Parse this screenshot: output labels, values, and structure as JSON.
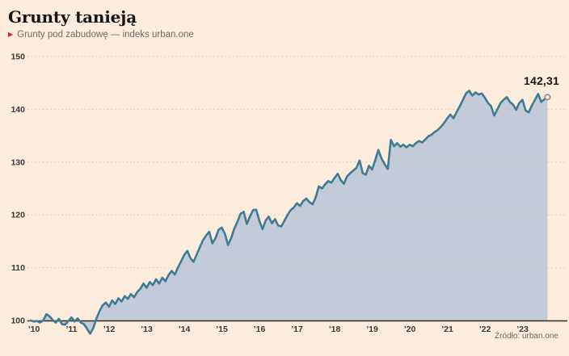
{
  "header": {
    "title": "Grunty tanieją",
    "legend_label": "Grunty pod zabudowę — indeks urban.one"
  },
  "source_note": "Źródło: urban.one",
  "colors": {
    "background": "#fbecdc",
    "line": "#3e7b97",
    "area_fill": "#c4cbd8",
    "grid": "#cfc5b9",
    "axis": "#2f2d2a",
    "legend_marker": "#d6232a",
    "tick_text": "#3b3835",
    "marker_fill": "#f6ede2",
    "marker_stroke": "#8f8a84"
  },
  "chart_data": {
    "type": "area",
    "title": "Grunty tanieją",
    "series_name": "Grunty pod zabudowę — indeks urban.one",
    "x_start": "2010-01",
    "frequency": "monthly",
    "x_tick_labels": [
      "’10",
      "’11",
      "’12",
      "’13",
      "’14",
      "’15",
      "’16",
      "’17",
      "’18",
      "’19",
      "’20",
      "’21",
      "’22",
      "’23"
    ],
    "y_ticks": [
      100,
      110,
      120,
      130,
      140,
      150
    ],
    "ylim": [
      100,
      150
    ],
    "grid": "dotted-horizontal",
    "legend_position": "top-left",
    "final_value_label": "142,31",
    "final_value": 142.31,
    "values": [
      100.0,
      99.8,
      99.9,
      99.6,
      100.0,
      101.2,
      100.8,
      100.1,
      99.6,
      100.3,
      99.3,
      99.2,
      99.9,
      100.6,
      99.8,
      100.4,
      99.6,
      99.3,
      98.4,
      97.5,
      98.6,
      100.4,
      101.8,
      102.9,
      103.4,
      102.6,
      103.8,
      103.1,
      104.2,
      103.6,
      104.6,
      104.1,
      105.0,
      104.4,
      105.4,
      106.0,
      107.0,
      106.2,
      107.3,
      106.7,
      107.8,
      107.0,
      108.1,
      107.4,
      108.6,
      109.4,
      108.7,
      110.0,
      111.2,
      112.4,
      113.2,
      111.8,
      111.1,
      112.5,
      113.9,
      115.2,
      116.1,
      116.8,
      114.6,
      115.6,
      117.2,
      117.6,
      116.4,
      114.3,
      115.6,
      117.4,
      118.7,
      120.2,
      120.6,
      118.3,
      119.7,
      120.9,
      121.0,
      118.9,
      117.3,
      118.9,
      119.7,
      118.4,
      119.2,
      118.0,
      117.8,
      118.9,
      120.0,
      120.9,
      121.4,
      122.2,
      121.7,
      122.6,
      123.1,
      122.4,
      122.0,
      123.3,
      125.4,
      125.0,
      125.8,
      126.4,
      126.1,
      127.0,
      127.8,
      126.6,
      125.9,
      127.3,
      127.9,
      128.4,
      128.9,
      130.3,
      127.9,
      127.6,
      129.3,
      128.6,
      130.4,
      132.3,
      130.7,
      129.6,
      128.7,
      134.2,
      133.0,
      133.6,
      132.9,
      133.3,
      132.8,
      133.3,
      133.0,
      133.6,
      134.0,
      133.7,
      134.3,
      134.9,
      135.2,
      135.7,
      136.1,
      136.7,
      137.4,
      138.3,
      139.0,
      138.3,
      139.5,
      140.6,
      141.8,
      143.0,
      143.5,
      142.6,
      143.2,
      142.8,
      143.0,
      142.2,
      141.2,
      140.6,
      138.8,
      140.0,
      141.2,
      141.8,
      142.3,
      141.4,
      140.9,
      139.9,
      141.2,
      141.8,
      139.8,
      139.4,
      140.7,
      141.8,
      142.9,
      141.4,
      141.9,
      142.31
    ]
  }
}
